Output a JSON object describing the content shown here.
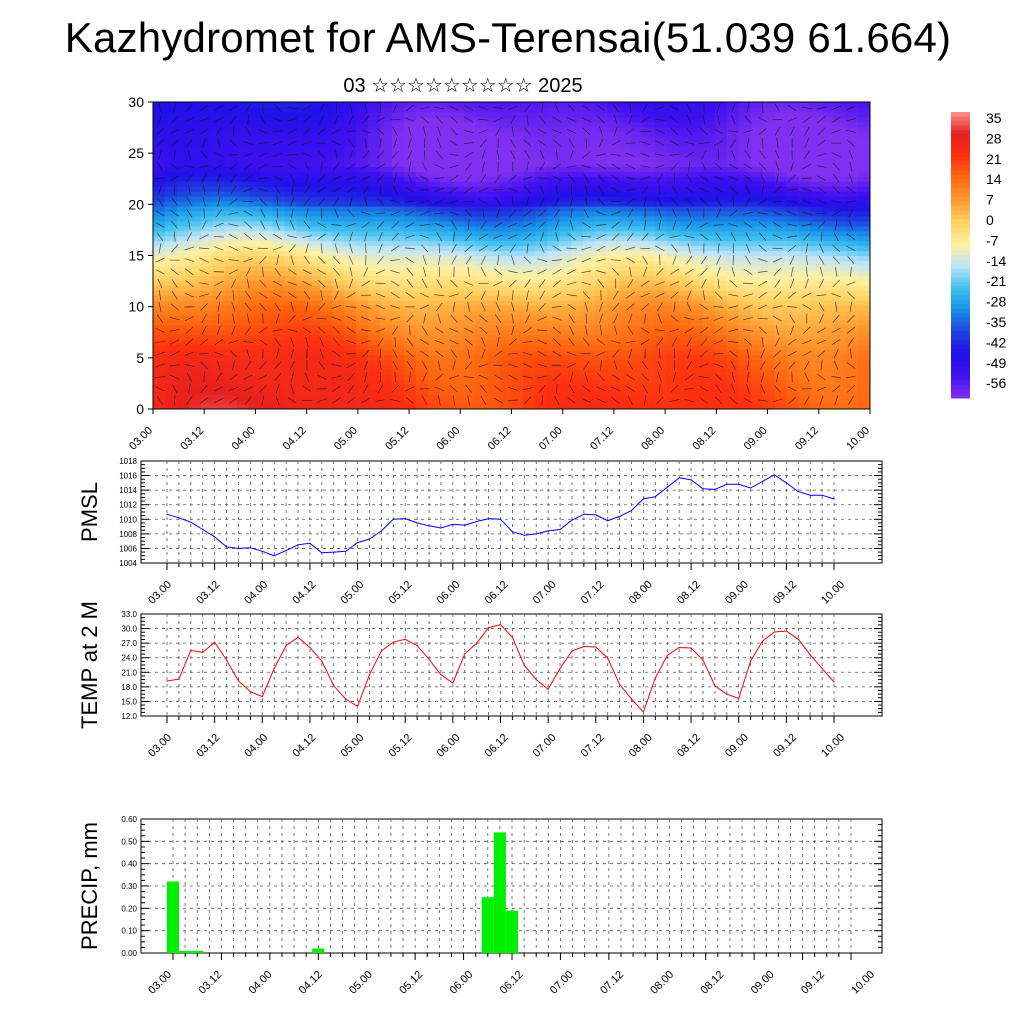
{
  "title": "Kazhydromet for AMS-Terensai(51.039 61.664)",
  "subtitle": "03 ☆☆☆☆☆☆☆☆☆ 2025",
  "chart_data": [
    {
      "type": "heatmap",
      "description_of_fill": "vertical cross-section with colour-filled contours and wind vectors",
      "xticks": [
        "03.00",
        "03.12",
        "04.00",
        "04.12",
        "05.00",
        "05.12",
        "06.00",
        "06.12",
        "07.00",
        "07.12",
        "08.00",
        "08.12",
        "09.00",
        "09.12",
        "10.00"
      ],
      "yticks": [
        0,
        5,
        10,
        15,
        20,
        25,
        30
      ],
      "ylim": [
        0,
        30
      ],
      "colorbar": {
        "labels": [
          "35",
          "28",
          "21",
          "14",
          "7",
          "0",
          "-7",
          "-14",
          "-21",
          "-28",
          "-35",
          "-42",
          "-49",
          "-56"
        ],
        "colors": [
          "#ff9090",
          "#e62020",
          "#ff3010",
          "#ff6a10",
          "#ff9a30",
          "#ffd060",
          "#fff0a0",
          "#c0e4f8",
          "#40c0f0",
          "#1890e8",
          "#2040e0",
          "#2010e8",
          "#4010f0",
          "#8030f0"
        ]
      },
      "profile": [
        {
          "level": 0,
          "temp": 22
        },
        {
          "level": 5,
          "temp": 18
        },
        {
          "level": 10,
          "temp": 7
        },
        {
          "level": 15,
          "temp": -10
        },
        {
          "level": 18,
          "temp": -25
        },
        {
          "level": 21,
          "temp": -40
        },
        {
          "level": 24,
          "temp": -52
        },
        {
          "level": 27,
          "temp": -50
        },
        {
          "level": 30,
          "temp": -45
        }
      ]
    },
    {
      "type": "line",
      "ylabel": "PMSL",
      "ylim": [
        1004,
        1018
      ],
      "yticks": [
        "1004",
        "1006",
        "1008",
        "1010",
        "1012",
        "1014",
        "1016",
        "1018"
      ],
      "xticks": [
        "03.00",
        "03.12",
        "04.00",
        "04.12",
        "05.00",
        "05.12",
        "06.00",
        "06.12",
        "07.00",
        "07.12",
        "08.00",
        "08.12",
        "09.00",
        "09.12",
        "10.00"
      ],
      "color": "#0000ff",
      "x": [
        0,
        3,
        6,
        9,
        12,
        15,
        18,
        21,
        24,
        27,
        30,
        33,
        36,
        39,
        42,
        45,
        48,
        51,
        54,
        57,
        60,
        63,
        66,
        69,
        72,
        75,
        78,
        81,
        84,
        87,
        90,
        93,
        96,
        99,
        102,
        105,
        108,
        111,
        114,
        117,
        120,
        123,
        126,
        129,
        132,
        135,
        138,
        141,
        144,
        147,
        150,
        153,
        156,
        159,
        162,
        165,
        168
      ],
      "values": [
        1010.7,
        1010.2,
        1009.6,
        1008.6,
        1007.6,
        1006.2,
        1006.0,
        1006.1,
        1005.6,
        1005.0,
        1005.7,
        1006.5,
        1006.7,
        1005.4,
        1005.5,
        1005.6,
        1006.8,
        1007.3,
        1008.4,
        1010.0,
        1010.1,
        1009.5,
        1009.1,
        1008.8,
        1009.3,
        1009.2,
        1009.7,
        1010.1,
        1010.0,
        1008.3,
        1007.8,
        1008.0,
        1008.4,
        1008.6,
        1009.9,
        1010.7,
        1010.6,
        1009.8,
        1010.4,
        1011.2,
        1012.8,
        1013.1,
        1014.4,
        1015.7,
        1015.4,
        1014.2,
        1014.1,
        1014.8,
        1014.8,
        1014.3,
        1015.2,
        1016.1,
        1015.0,
        1013.8,
        1013.3,
        1013.3,
        1012.8
      ]
    },
    {
      "type": "line",
      "ylabel": "TEMP at 2 M",
      "ylim": [
        12,
        33
      ],
      "yticks": [
        "12.0",
        "15.0",
        "18.0",
        "21.0",
        "24.0",
        "27.0",
        "30.0",
        "33.0"
      ],
      "xticks": [
        "03.00",
        "03.12",
        "04.00",
        "04.12",
        "05.00",
        "05.12",
        "06.00",
        "06.12",
        "07.00",
        "07.12",
        "08.00",
        "08.12",
        "09.00",
        "09.12",
        "10.00"
      ],
      "color": "#ff0000",
      "x": [
        0,
        3,
        6,
        9,
        12,
        15,
        18,
        21,
        24,
        27,
        30,
        33,
        36,
        39,
        42,
        45,
        48,
        51,
        54,
        57,
        60,
        63,
        66,
        69,
        72,
        75,
        78,
        81,
        84,
        87,
        90,
        93,
        96,
        99,
        102,
        105,
        108,
        111,
        114,
        117,
        120,
        123,
        126,
        129,
        132,
        135,
        138,
        141,
        144,
        147,
        150,
        153,
        156,
        159,
        162,
        165,
        168
      ],
      "values": [
        19.2,
        19.6,
        25.5,
        25.1,
        27.2,
        23.5,
        19.2,
        17.0,
        16.0,
        21.8,
        26.5,
        28.2,
        26.1,
        23.3,
        18.2,
        15.5,
        14.0,
        20.5,
        25.4,
        27.2,
        27.8,
        26.5,
        23.7,
        20.5,
        18.8,
        24.8,
        27.0,
        30.2,
        30.8,
        28.2,
        22.4,
        19.5,
        17.5,
        21.8,
        25.4,
        26.3,
        26.2,
        23.9,
        18.5,
        15.5,
        12.8,
        19.8,
        24.5,
        26.1,
        26.0,
        23.5,
        18.2,
        16.5,
        15.6,
        23.3,
        27.4,
        29.3,
        29.5,
        27.8,
        24.6,
        21.8,
        19.0
      ]
    },
    {
      "type": "bar",
      "ylabel": "PRECIP, mm",
      "ylim": [
        0,
        0.6
      ],
      "yticks": [
        "0.00",
        "0.10",
        "0.20",
        "0.30",
        "0.40",
        "0.50",
        "0.60"
      ],
      "xticks": [
        "03.00",
        "03.12",
        "04.00",
        "04.12",
        "05.00",
        "05.12",
        "06.00",
        "06.12",
        "07.00",
        "07.12",
        "08.00",
        "08.12",
        "09.00",
        "09.12",
        "10.00"
      ],
      "color": "#00ee00",
      "bars": [
        {
          "x": 0,
          "value": 0.32
        },
        {
          "x": 3,
          "value": 0.01
        },
        {
          "x": 6,
          "value": 0.01
        },
        {
          "x": 36,
          "value": 0.02
        },
        {
          "x": 78,
          "value": 0.25
        },
        {
          "x": 81,
          "value": 0.54
        },
        {
          "x": 84,
          "value": 0.19
        }
      ]
    }
  ]
}
